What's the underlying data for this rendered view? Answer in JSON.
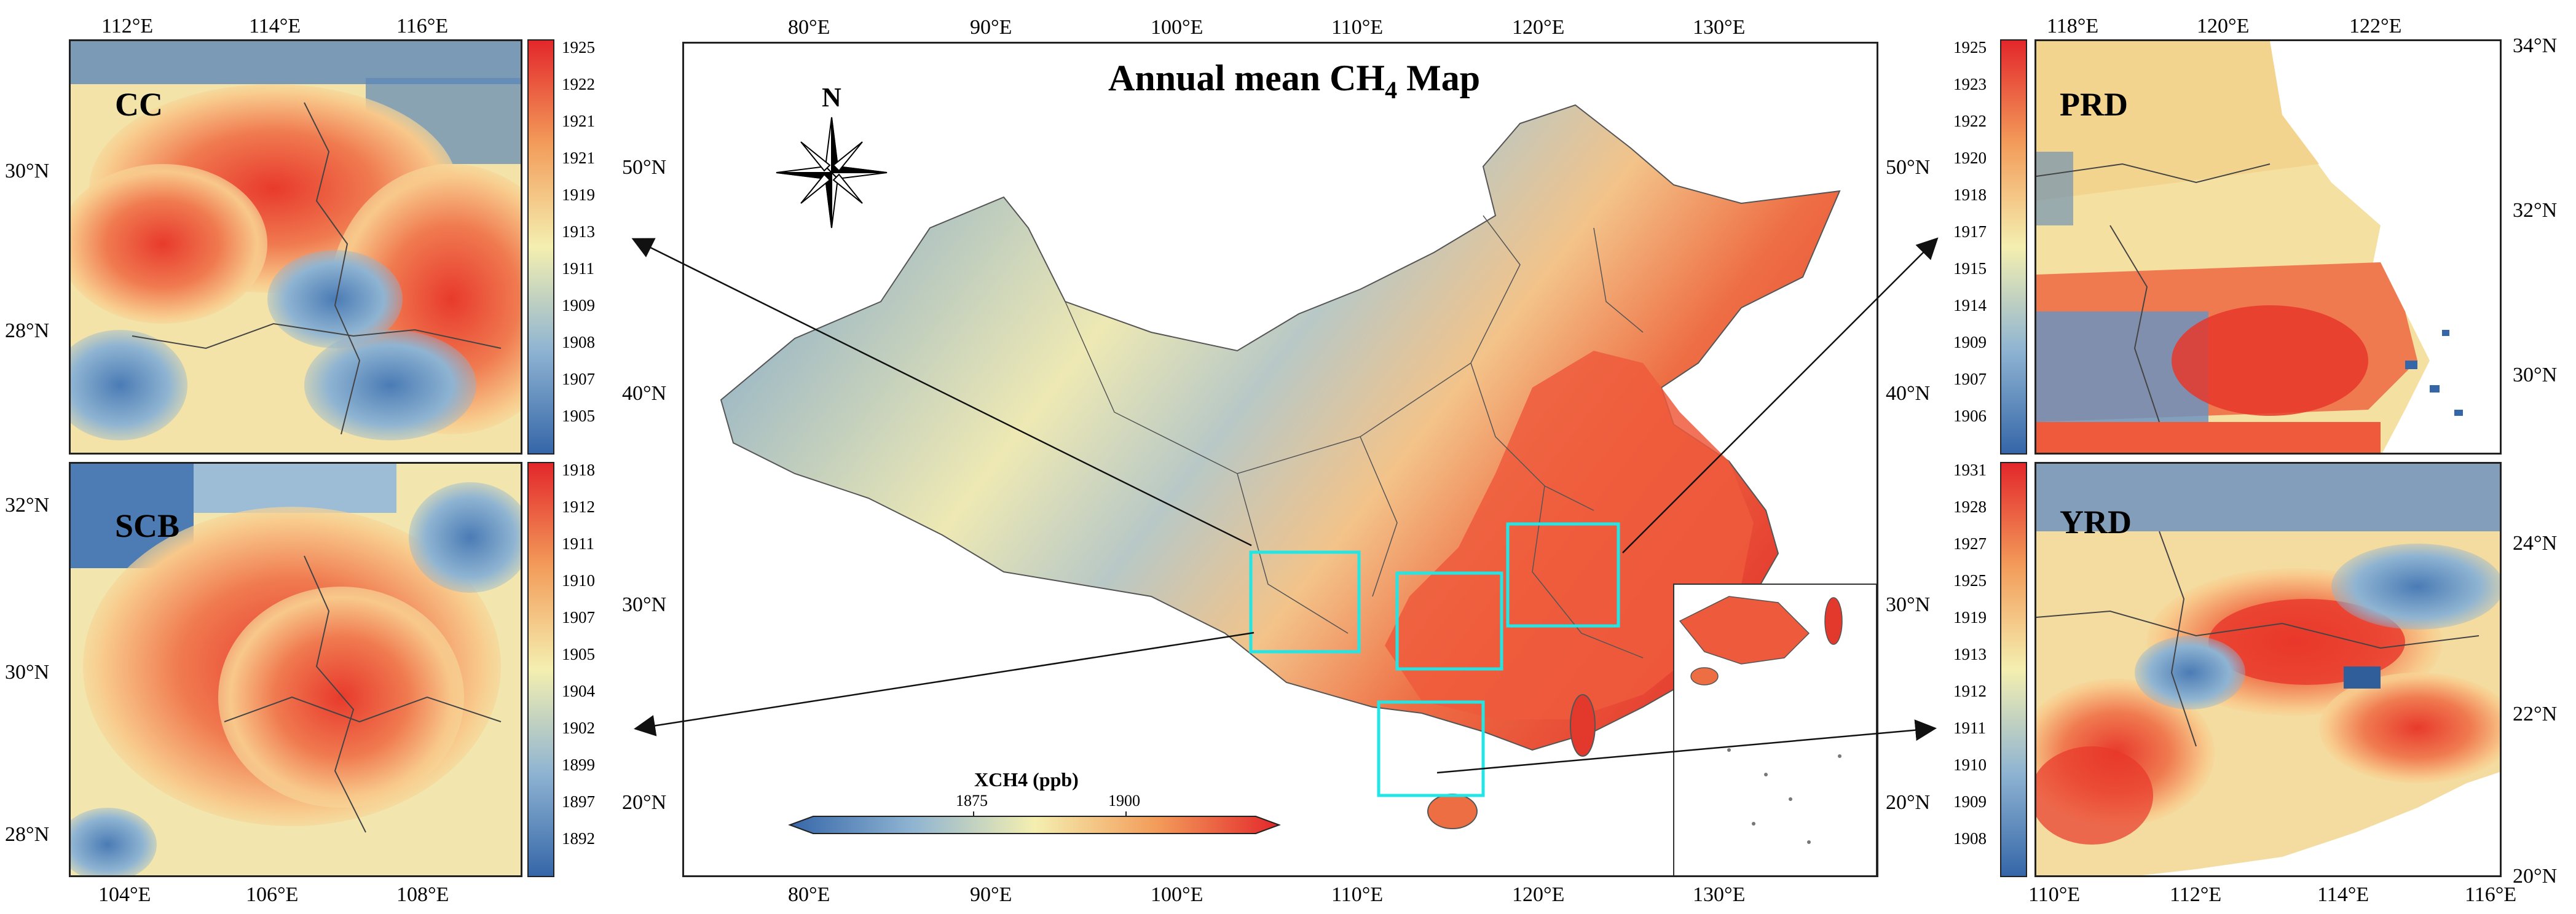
{
  "main_map": {
    "title_main": "Annual mean CH",
    "title_sub": "4",
    "title_suffix": " Map",
    "north_label": "N",
    "lon_ticks_top": [
      "80°E",
      "90°E",
      "100°E",
      "110°E",
      "120°E",
      "130°E"
    ],
    "lon_ticks_bottom": [
      "80°E",
      "90°E",
      "100°E",
      "110°E",
      "120°E",
      "130°E"
    ],
    "lat_ticks_left": [
      "50°N",
      "40°N",
      "30°N",
      "20°N"
    ],
    "lat_ticks_right": [
      "50°N",
      "40°N",
      "30°N",
      "20°N"
    ],
    "colorbar_title": "XCH4 (ppb)",
    "colorbar_ticks": [
      "1875",
      "1900"
    ],
    "highlight_color": "#22e6e6"
  },
  "panels": {
    "cc": {
      "label": "CC",
      "lon_ticks": [
        "112°E",
        "114°E",
        "116°E"
      ],
      "lat_ticks": [
        "30°N",
        "28°N"
      ],
      "colorbar": [
        "1925",
        "1922",
        "1921",
        "1921",
        "1919",
        "1913",
        "1911",
        "1909",
        "1908",
        "1907",
        "1905"
      ]
    },
    "scb": {
      "label": "SCB",
      "lon_ticks": [
        "104°E",
        "106°E",
        "108°E"
      ],
      "lat_ticks": [
        "32°N",
        "30°N",
        "28°N"
      ],
      "colorbar": [
        "1918",
        "1912",
        "1911",
        "1910",
        "1907",
        "1905",
        "1904",
        "1902",
        "1899",
        "1897",
        "1892"
      ]
    },
    "prd": {
      "label": "PRD",
      "lon_ticks": [
        "118°E",
        "120°E",
        "122°E"
      ],
      "lat_ticks": [
        "34°N",
        "32°N",
        "30°N"
      ],
      "colorbar": [
        "1925",
        "1923",
        "1922",
        "1920",
        "1918",
        "1917",
        "1915",
        "1914",
        "1909",
        "1907",
        "1906"
      ]
    },
    "yrd": {
      "label": "YRD",
      "lon_ticks": [
        "110°E",
        "112°E",
        "114°E",
        "116°E"
      ],
      "lat_ticks": [
        "24°N",
        "22°N",
        "20°N"
      ],
      "colorbar": [
        "1931",
        "1928",
        "1927",
        "1925",
        "1919",
        "1913",
        "1912",
        "1911",
        "1910",
        "1909",
        "1908"
      ]
    }
  },
  "colors": {
    "low": "#3566a8",
    "mid": "#f4efb0",
    "high": "#e83a2c",
    "frame": "#222222"
  }
}
